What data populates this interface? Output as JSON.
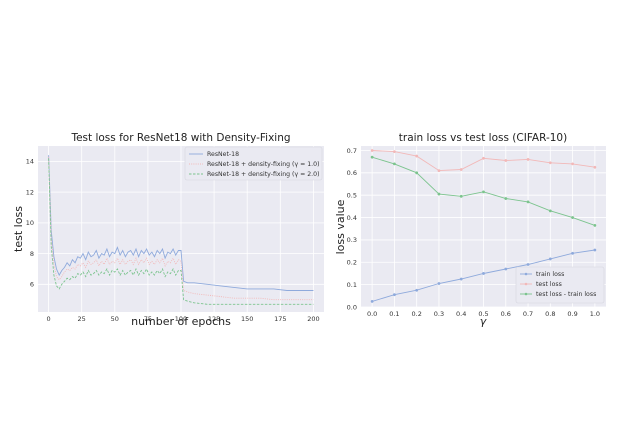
{
  "chart_data": [
    {
      "type": "line",
      "title": "Test loss for ResNet18 with Density-Fixing",
      "xlabel": "number of epochs",
      "ylabel": "test loss",
      "xlim": [
        -8,
        208
      ],
      "ylim": [
        4.2,
        15.0
      ],
      "xticks": [
        0,
        25,
        50,
        75,
        100,
        125,
        150,
        175,
        200
      ],
      "yticks": [
        6,
        8,
        10,
        12,
        14
      ],
      "grid": true,
      "legend": "top-right",
      "series": [
        {
          "name": "ResNet-18",
          "color": "#8faadc",
          "style": "solid",
          "x": [
            0,
            2,
            4,
            6,
            8,
            10,
            12,
            14,
            16,
            18,
            20,
            22,
            24,
            26,
            28,
            30,
            32,
            34,
            36,
            38,
            40,
            42,
            44,
            46,
            48,
            50,
            52,
            54,
            56,
            58,
            60,
            62,
            64,
            66,
            68,
            70,
            72,
            74,
            76,
            78,
            80,
            82,
            84,
            86,
            88,
            90,
            92,
            94,
            96,
            98,
            100,
            102,
            105,
            110,
            120,
            130,
            140,
            150,
            160,
            170,
            180,
            190,
            200
          ],
          "y": [
            14.4,
            9.5,
            7.8,
            7.0,
            6.6,
            6.9,
            7.1,
            7.4,
            7.2,
            7.6,
            7.4,
            7.8,
            7.7,
            8.0,
            7.6,
            8.1,
            7.8,
            7.9,
            8.2,
            7.7,
            8.0,
            7.9,
            8.3,
            7.8,
            8.1,
            8.0,
            8.4,
            7.9,
            8.2,
            7.8,
            8.1,
            8.2,
            7.9,
            8.3,
            7.8,
            8.2,
            8.0,
            8.3,
            7.9,
            8.1,
            7.8,
            8.2,
            8.0,
            8.3,
            7.7,
            8.1,
            8.0,
            8.3,
            7.9,
            8.2,
            8.2,
            6.2,
            6.1,
            6.1,
            6.0,
            5.9,
            5.8,
            5.7,
            5.7,
            5.7,
            5.6,
            5.6,
            5.6
          ]
        },
        {
          "name": "ResNet-18 + density-fixing (γ = 1.0)",
          "color": "#f2b8b8",
          "style": "dotted",
          "x": [
            0,
            2,
            4,
            6,
            8,
            10,
            12,
            14,
            16,
            18,
            20,
            22,
            24,
            26,
            28,
            30,
            32,
            34,
            36,
            38,
            40,
            42,
            44,
            46,
            48,
            50,
            52,
            54,
            56,
            58,
            60,
            62,
            64,
            66,
            68,
            70,
            72,
            74,
            76,
            78,
            80,
            82,
            84,
            86,
            88,
            90,
            92,
            94,
            96,
            98,
            100,
            102,
            105,
            110,
            120,
            130,
            140,
            150,
            160,
            170,
            180,
            190,
            200
          ],
          "y": [
            14.3,
            9.0,
            7.3,
            6.5,
            6.3,
            6.5,
            6.8,
            7.0,
            6.9,
            7.1,
            7.0,
            7.3,
            7.2,
            7.4,
            7.1,
            7.5,
            7.3,
            7.4,
            7.6,
            7.2,
            7.5,
            7.3,
            7.7,
            7.3,
            7.5,
            7.4,
            7.7,
            7.3,
            7.6,
            7.3,
            7.5,
            7.6,
            7.3,
            7.7,
            7.3,
            7.6,
            7.4,
            7.7,
            7.3,
            7.5,
            7.3,
            7.6,
            7.4,
            7.7,
            7.2,
            7.5,
            7.4,
            7.7,
            7.3,
            7.6,
            7.5,
            5.6,
            5.5,
            5.4,
            5.3,
            5.2,
            5.1,
            5.1,
            5.1,
            5.0,
            5.0,
            5.0,
            5.0
          ]
        },
        {
          "name": "ResNet-18 + density-fixing (γ = 2.0)",
          "color": "#7cc48e",
          "style": "dashed",
          "x": [
            0,
            2,
            4,
            6,
            8,
            10,
            12,
            14,
            16,
            18,
            20,
            22,
            24,
            26,
            28,
            30,
            32,
            34,
            36,
            38,
            40,
            42,
            44,
            46,
            48,
            50,
            52,
            54,
            56,
            58,
            60,
            62,
            64,
            66,
            68,
            70,
            72,
            74,
            76,
            78,
            80,
            82,
            84,
            86,
            88,
            90,
            92,
            94,
            96,
            98,
            100,
            102,
            105,
            110,
            120,
            130,
            140,
            150,
            160,
            170,
            180,
            190,
            200
          ],
          "y": [
            14.2,
            8.5,
            6.6,
            5.9,
            5.7,
            6.0,
            6.2,
            6.4,
            6.3,
            6.5,
            6.4,
            6.7,
            6.6,
            6.8,
            6.5,
            6.9,
            6.6,
            6.7,
            6.9,
            6.6,
            6.8,
            6.7,
            7.0,
            6.6,
            6.9,
            6.8,
            7.0,
            6.6,
            6.9,
            6.6,
            6.8,
            6.9,
            6.6,
            7.0,
            6.6,
            6.9,
            6.7,
            7.0,
            6.6,
            6.8,
            6.6,
            6.9,
            6.7,
            7.0,
            6.5,
            6.8,
            6.7,
            7.0,
            6.6,
            6.9,
            6.9,
            5.0,
            4.9,
            4.8,
            4.7,
            4.7,
            4.7,
            4.7,
            4.7,
            4.7,
            4.7,
            4.7,
            4.7
          ]
        }
      ]
    },
    {
      "type": "line",
      "title": "train loss vs test loss (CIFAR-10)",
      "xlabel": "γ",
      "ylabel": "loss value",
      "xlim": [
        -0.05,
        1.05
      ],
      "ylim": [
        0.0,
        0.72
      ],
      "xticks": [
        0.0,
        0.1,
        0.2,
        0.3,
        0.4,
        0.5,
        0.6,
        0.7,
        0.8,
        0.9,
        1.0
      ],
      "yticks": [
        0.0,
        0.1,
        0.2,
        0.3,
        0.4,
        0.5,
        0.6,
        0.7
      ],
      "grid": true,
      "legend": "bottom-right",
      "series": [
        {
          "name": "train loss",
          "color": "#8faadc",
          "marker": true,
          "x": [
            0.0,
            0.1,
            0.2,
            0.3,
            0.4,
            0.5,
            0.6,
            0.7,
            0.8,
            0.9,
            1.0
          ],
          "y": [
            0.025,
            0.055,
            0.075,
            0.105,
            0.125,
            0.15,
            0.17,
            0.19,
            0.215,
            0.24,
            0.255
          ]
        },
        {
          "name": "test loss",
          "color": "#f2b8b8",
          "marker": true,
          "x": [
            0.0,
            0.1,
            0.2,
            0.3,
            0.4,
            0.5,
            0.6,
            0.7,
            0.8,
            0.9,
            1.0
          ],
          "y": [
            0.7,
            0.695,
            0.675,
            0.61,
            0.615,
            0.665,
            0.655,
            0.66,
            0.645,
            0.64,
            0.625
          ]
        },
        {
          "name": "test loss - train loss",
          "color": "#7cc48e",
          "marker": true,
          "x": [
            0.0,
            0.1,
            0.2,
            0.3,
            0.4,
            0.5,
            0.6,
            0.7,
            0.8,
            0.9,
            1.0
          ],
          "y": [
            0.67,
            0.64,
            0.6,
            0.505,
            0.495,
            0.515,
            0.485,
            0.47,
            0.43,
            0.4,
            0.365
          ]
        }
      ]
    }
  ]
}
